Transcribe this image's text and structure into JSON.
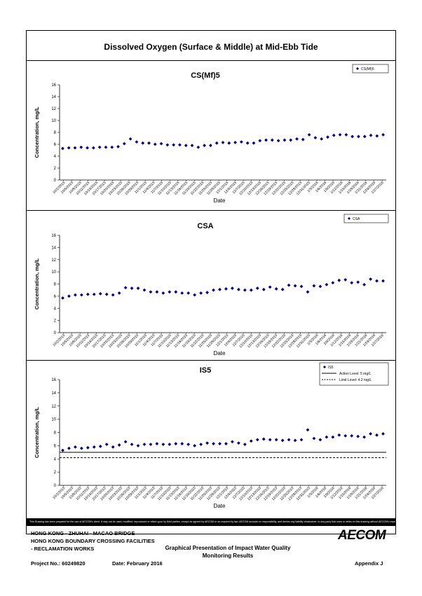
{
  "page": {
    "title": "Dissolved Oxygen (Surface & Middle) at Mid-Ebb Tide"
  },
  "chart_data": [
    {
      "type": "scatter",
      "title": "CS(Mf)5",
      "xlabel": "Date",
      "ylabel": "Concentration, mg/L",
      "ylim": [
        0,
        16
      ],
      "yticks": [
        0,
        2,
        4,
        6,
        8,
        10,
        12,
        14,
        16
      ],
      "legend": "top-right",
      "x_tick_labels": [
        "10/2/2015",
        "10/5/2015",
        "10/8/2015",
        "10/11/2015",
        "10/14/2015",
        "10/17/2015",
        "10/20/2015",
        "10/23/2015",
        "10/26/2015",
        "10/29/2015",
        "11/1/2015",
        "11/4/2015",
        "11/7/2015",
        "11/10/2015",
        "11/13/2015",
        "11/16/2015",
        "11/19/2015",
        "11/22/2015",
        "11/25/2015",
        "11/28/2015",
        "12/1/2015",
        "12/4/2015",
        "12/7/2015",
        "12/10/2015",
        "12/13/2015",
        "12/16/2015",
        "12/19/2015",
        "12/22/2015",
        "12/25/2015",
        "12/28/2015",
        "12/31/2015",
        "1/3/2016",
        "1/6/2016",
        "1/9/2016",
        "1/12/2016",
        "1/15/2016",
        "1/18/2016",
        "1/21/2016",
        "1/24/2016",
        "1/27/2016"
      ],
      "series": [
        {
          "name": "CS(Mf)5",
          "marker": "diamond",
          "color": "#00007f",
          "values": [
            5.3,
            5.4,
            5.4,
            5.5,
            5.4,
            5.4,
            5.5,
            5.5,
            5.5,
            5.6,
            6.1,
            6.9,
            6.4,
            6.2,
            6.2,
            6.0,
            6.1,
            5.9,
            5.9,
            5.9,
            5.8,
            5.8,
            5.5,
            5.8,
            5.8,
            6.2,
            6.3,
            6.2,
            6.3,
            6.4,
            6.2,
            6.2,
            6.6,
            6.7,
            6.7,
            6.6,
            6.7,
            6.7,
            6.9,
            6.8,
            7.6,
            7.1,
            6.9,
            7.2,
            7.5,
            7.6,
            7.6,
            7.3,
            7.3,
            7.3,
            7.5,
            7.4,
            7.6
          ]
        }
      ]
    },
    {
      "type": "scatter",
      "title": "CSA",
      "xlabel": "Date",
      "ylabel": "Concentration, mg/L",
      "ylim": [
        0,
        16
      ],
      "yticks": [
        0,
        2,
        4,
        6,
        8,
        10,
        12,
        14,
        16
      ],
      "legend": "top-right",
      "x_tick_labels": [
        "10/2/2015",
        "10/5/2015",
        "10/8/2015",
        "10/11/2015",
        "10/14/2015",
        "10/17/2015",
        "10/20/2015",
        "10/23/2015",
        "10/26/2015",
        "10/29/2015",
        "11/1/2015",
        "11/4/2015",
        "11/7/2015",
        "11/10/2015",
        "11/13/2015",
        "11/16/2015",
        "11/19/2015",
        "11/22/2015",
        "11/25/2015",
        "11/28/2015",
        "12/1/2015",
        "12/4/2015",
        "12/7/2015",
        "12/10/2015",
        "12/13/2015",
        "12/16/2015",
        "12/19/2015",
        "12/22/2015",
        "12/25/2015",
        "12/28/2015",
        "12/31/2015",
        "1/3/2016",
        "1/6/2016",
        "1/9/2016",
        "1/12/2016",
        "1/15/2016",
        "1/18/2016",
        "1/21/2016",
        "1/24/2016",
        "1/27/2016"
      ],
      "series": [
        {
          "name": "CSA",
          "marker": "diamond",
          "color": "#00007f",
          "values": [
            5.7,
            6.0,
            6.2,
            6.2,
            6.3,
            6.3,
            6.4,
            6.3,
            6.2,
            6.5,
            7.4,
            7.3,
            7.3,
            7.0,
            6.7,
            6.7,
            6.5,
            6.7,
            6.7,
            6.5,
            6.5,
            6.2,
            6.5,
            6.6,
            7.0,
            7.1,
            7.2,
            7.3,
            7.1,
            7.0,
            7.0,
            7.3,
            7.1,
            7.5,
            7.2,
            7.1,
            7.8,
            7.7,
            7.6,
            6.7,
            7.7,
            7.6,
            7.9,
            8.2,
            8.6,
            8.7,
            8.2,
            8.3,
            7.9,
            8.8,
            8.5,
            8.5
          ]
        }
      ]
    },
    {
      "type": "scatter",
      "title": "IS5",
      "xlabel": "Date",
      "ylabel": "Concentration, mg/L",
      "ylim": [
        0,
        16
      ],
      "yticks": [
        0,
        2,
        4,
        6,
        8,
        10,
        12,
        14,
        16
      ],
      "legend": "top-right",
      "x_tick_labels": [
        "10/2/2015",
        "10/5/2015",
        "10/8/2015",
        "10/11/2015",
        "10/14/2015",
        "10/17/2015",
        "10/20/2015",
        "10/23/2015",
        "10/26/2015",
        "10/29/2015",
        "11/1/2015",
        "11/4/2015",
        "11/7/2015",
        "11/10/2015",
        "11/13/2015",
        "11/16/2015",
        "11/19/2015",
        "11/22/2015",
        "11/25/2015",
        "11/28/2015",
        "12/1/2015",
        "12/4/2015",
        "12/7/2015",
        "12/10/2015",
        "12/13/2015",
        "12/16/2015",
        "12/19/2015",
        "12/22/2015",
        "12/25/2015",
        "12/28/2015",
        "12/31/2015",
        "1/3/2016",
        "1/6/2016",
        "1/9/2016",
        "1/12/2016",
        "1/15/2016",
        "1/18/2016",
        "1/21/2016",
        "1/24/2016",
        "1/27/2016"
      ],
      "series": [
        {
          "name": "IS5",
          "marker": "diamond",
          "color": "#00007f",
          "values": [
            5.3,
            5.6,
            5.8,
            5.6,
            5.7,
            5.8,
            5.9,
            6.2,
            5.8,
            6.1,
            6.6,
            6.2,
            6.0,
            6.2,
            6.2,
            6.3,
            6.2,
            6.2,
            6.3,
            6.3,
            6.2,
            6.0,
            6.2,
            6.4,
            6.3,
            6.3,
            6.3,
            6.6,
            6.4,
            6.2,
            6.7,
            6.9,
            7.0,
            6.9,
            6.9,
            6.8,
            6.9,
            6.8,
            6.9,
            8.4,
            7.1,
            6.9,
            7.3,
            7.3,
            7.6,
            7.5,
            7.5,
            7.4,
            7.3,
            7.8,
            7.6,
            7.8
          ]
        }
      ],
      "reference_lines": [
        {
          "name": "Action Level: 5 mg/L",
          "value": 5,
          "style": "solid"
        },
        {
          "name": "Limit Level: 4.2 mg/L",
          "value": 4.2,
          "style": "dashed"
        }
      ]
    }
  ],
  "footer": {
    "disclaimer": "This Drawing has been prepared for the use of AECOM's client. It may not be used, modified, reproduced or relied upon by third parties, except as agreed by AECOM or as required by law. AECOM accepts no responsibility, and denies any liability whatsoever, to any party that uses or relies on this drawing without AECOM's express written consent.",
    "project_line1": "HONG KONG - ZHUHAI - MACAO BRIDGE",
    "project_line2": "HONG KONG BOUNDARY CROSSING FACILITIES",
    "project_line3": "- RECLAMATION WORKS",
    "graph_title_line1": "Graphical Presentation of Impact Water Quality",
    "graph_title_line2": "Monitoring Results",
    "project_no": "Project No.: 60249820",
    "date": "Date: February 2016",
    "appendix": "Appendix J",
    "logo_text": "AECOM"
  }
}
